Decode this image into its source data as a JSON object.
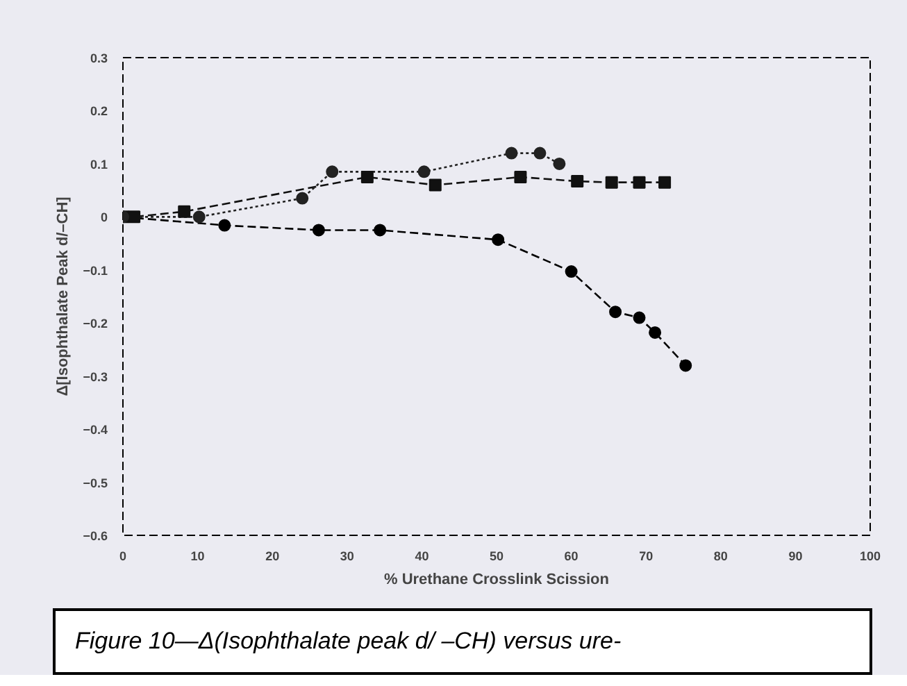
{
  "chart_data": {
    "type": "line",
    "xlabel": "% Urethane Crosslink Scission",
    "ylabel": "Δ[Isophthalate Peak d/–CH]",
    "xlim": [
      0,
      100
    ],
    "ylim": [
      -0.6,
      0.3
    ],
    "xticks": [
      0,
      10,
      20,
      30,
      40,
      50,
      60,
      70,
      80,
      90,
      100
    ],
    "yticks": [
      0.3,
      0.2,
      0.1,
      0,
      -0.1,
      -0.2,
      -0.3,
      -0.4,
      -0.5,
      -0.6
    ],
    "grid": false,
    "series": [
      {
        "color": "#000000",
        "marker": "circle",
        "line_style": "dashed",
        "x": [
          0,
          13.6,
          26.2,
          34.4,
          50.2,
          60,
          65.9,
          69.1,
          71.2,
          75.3
        ],
        "values": [
          0,
          -0.016,
          -0.025,
          -0.025,
          -0.043,
          -0.103,
          -0.179,
          -0.19,
          -0.218,
          -0.28
        ]
      },
      {
        "color": "#111111",
        "marker": "square",
        "line_style": "dashed",
        "x": [
          0,
          1.5,
          8.2,
          32.7,
          41.8,
          53.2,
          60.8,
          65.4,
          69.1,
          72.5
        ],
        "values": [
          0,
          0,
          0.01,
          0.075,
          0.06,
          0.075,
          0.067,
          0.065,
          0.065,
          0.065
        ]
      },
      {
        "color": "#222222",
        "marker": "circle",
        "line_style": "dotted",
        "x": [
          0,
          10.2,
          24,
          28,
          40.3,
          52,
          55.8,
          58.4
        ],
        "values": [
          0,
          0,
          0.035,
          0.085,
          0.085,
          0.12,
          0.12,
          0.1
        ]
      }
    ],
    "annotations": [
      "Figure 10—Δ(Isophthalate peak d/ –CH) versus ure-"
    ]
  }
}
